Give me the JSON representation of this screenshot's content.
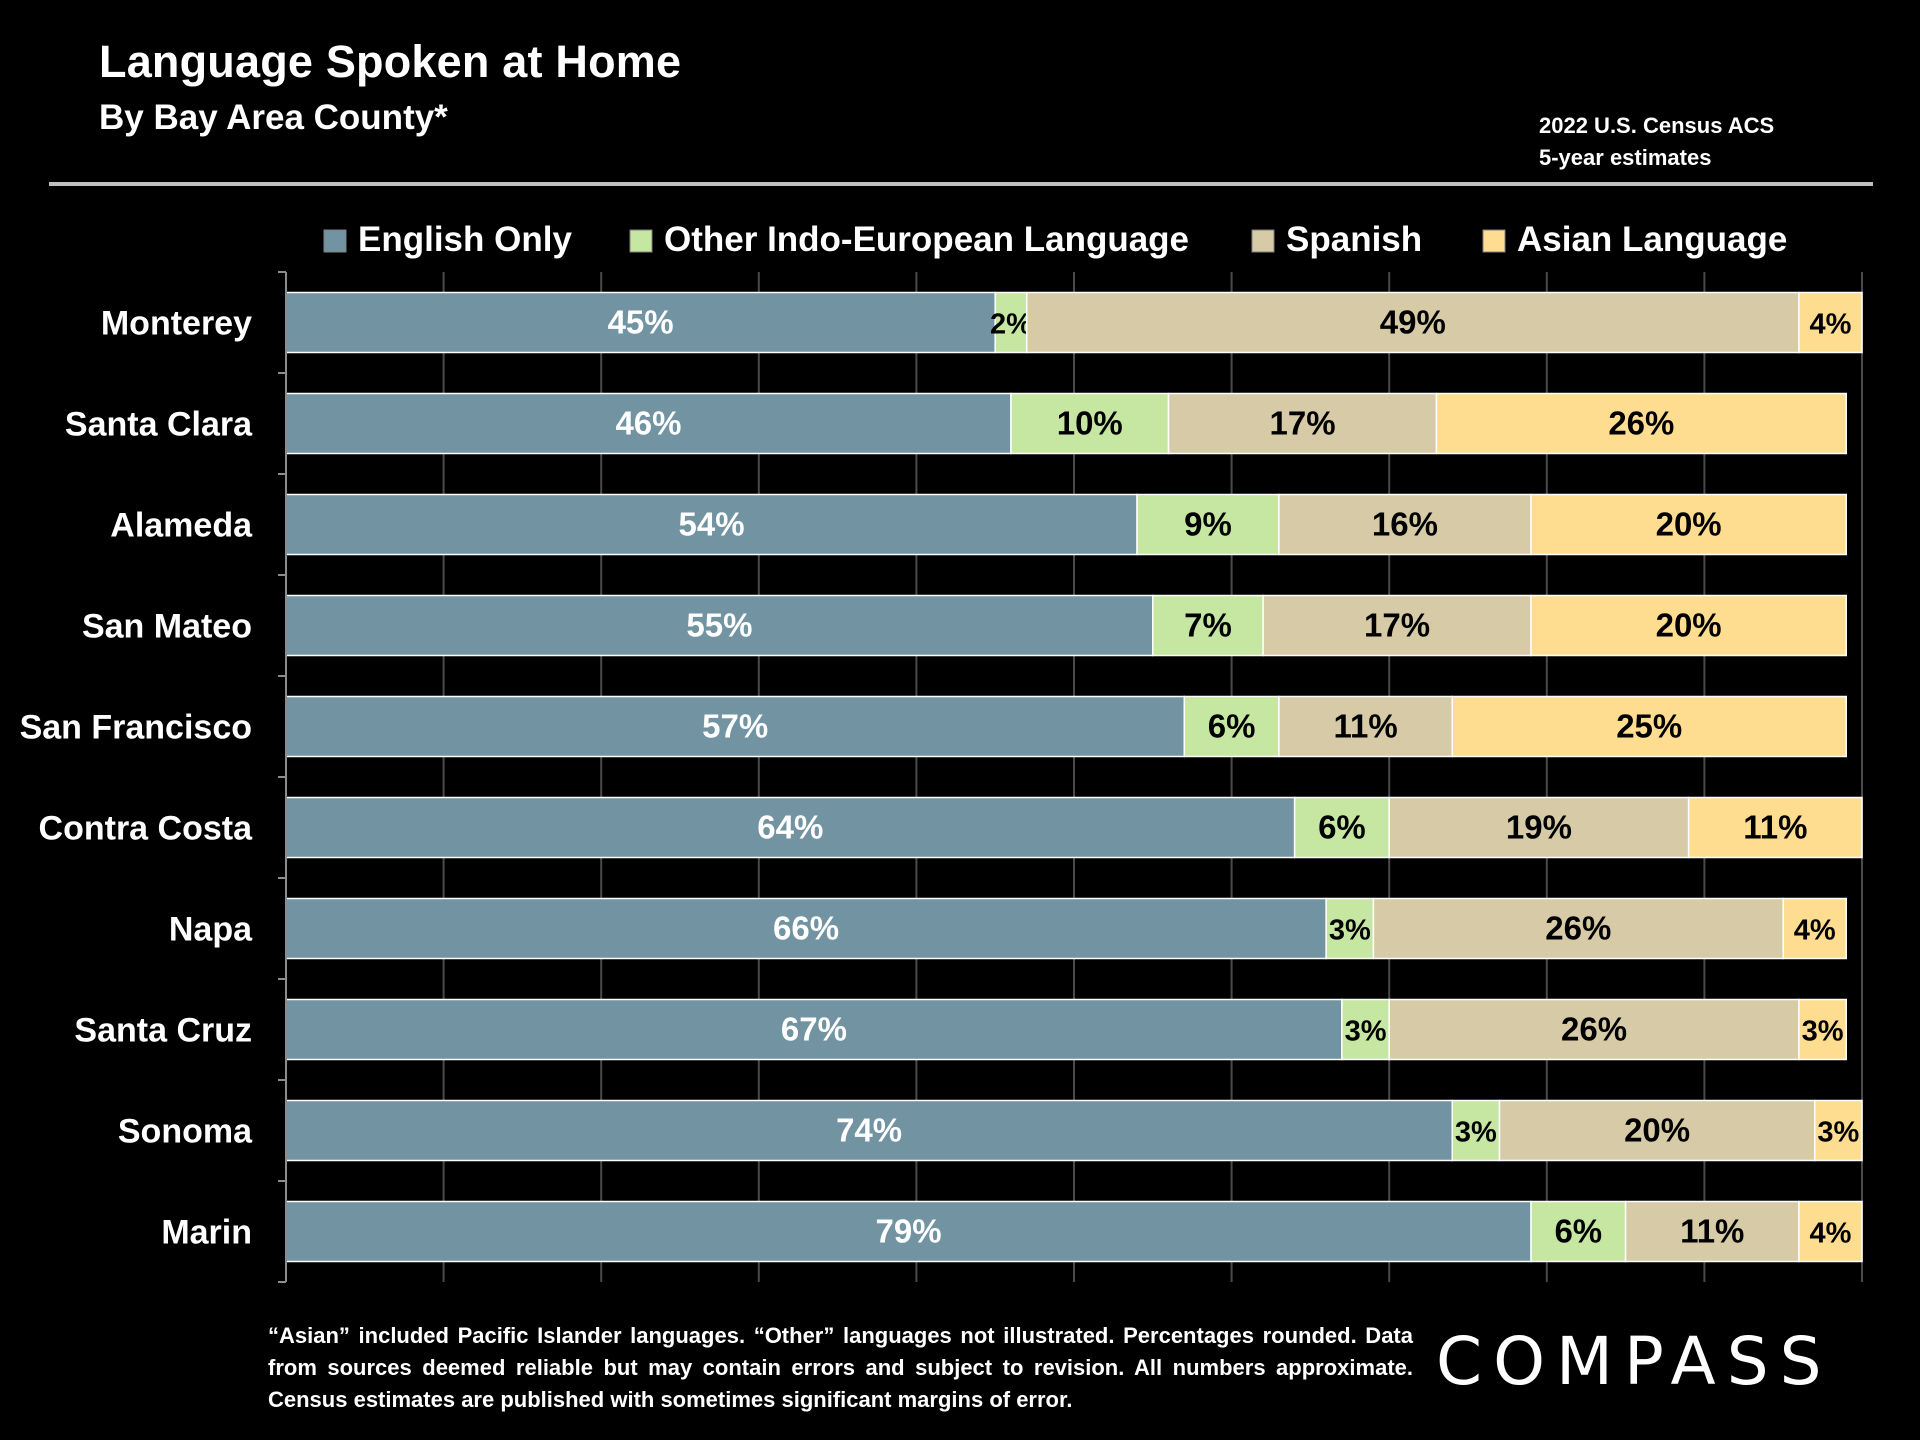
{
  "header": {
    "title": "Language Spoken at Home",
    "subtitle": "By Bay Area County*",
    "source_line1": "2022 U.S. Census ACS",
    "source_line2": "5-year estimates"
  },
  "footer": {
    "footnote": "“Asian” included Pacific Islander languages. “Other” languages not illustrated. Percentages rounded. Data from sources deemed reliable but may contain errors and subject to revision. All numbers approximate. Census estimates are published with sometimes significant margins of error.",
    "logo": "COMPASS"
  },
  "chart_data": {
    "type": "bar",
    "orientation": "horizontal",
    "stacked": true,
    "categories": [
      "Monterey",
      "Santa Clara",
      "Alameda",
      "San Mateo",
      "San Francisco",
      "Contra Costa",
      "Napa",
      "Santa Cruz",
      "Sonoma",
      "Marin"
    ],
    "series": [
      {
        "name": "English Only",
        "color": "#7293a1",
        "label_color": "#ffffff",
        "values": [
          45,
          46,
          54,
          55,
          57,
          64,
          66,
          67,
          74,
          79
        ]
      },
      {
        "name": "Other Indo-European Language",
        "color": "#c5e7a1",
        "label_color": "#000000",
        "values": [
          2,
          10,
          9,
          7,
          6,
          6,
          3,
          3,
          3,
          6
        ]
      },
      {
        "name": "Spanish",
        "color": "#d6cba6",
        "label_color": "#000000",
        "values": [
          49,
          17,
          16,
          17,
          11,
          19,
          26,
          26,
          20,
          11
        ]
      },
      {
        "name": "Asian Language",
        "color": "#ffdd90",
        "label_color": "#000000",
        "values": [
          4,
          26,
          20,
          20,
          25,
          11,
          4,
          3,
          3,
          4
        ]
      }
    ],
    "xlim": [
      0,
      100
    ],
    "grid": true,
    "legend": "top"
  }
}
